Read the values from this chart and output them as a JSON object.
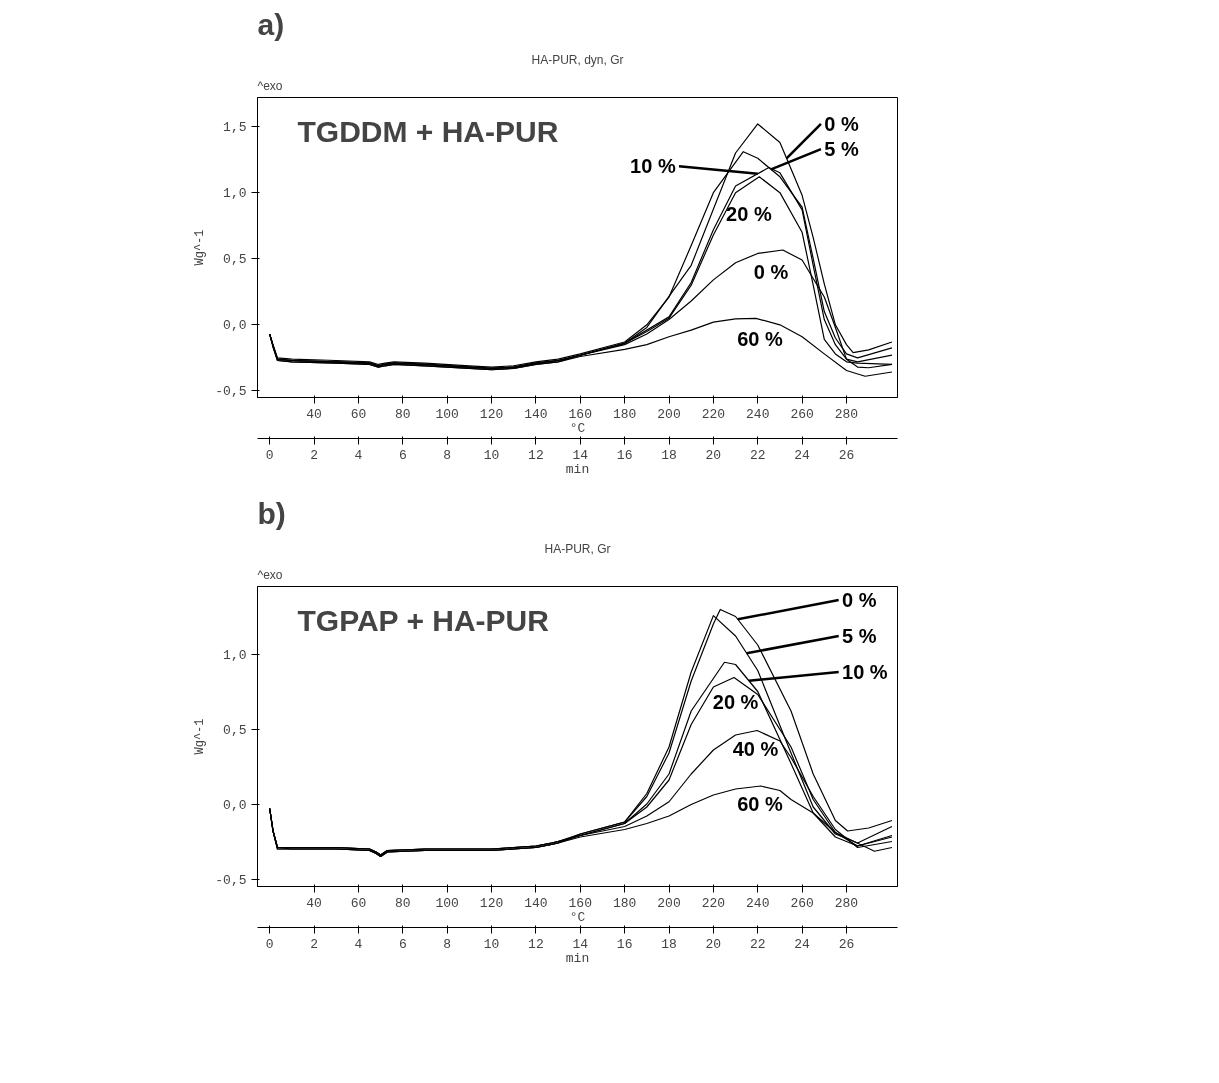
{
  "chart_data": [
    {
      "type": "line",
      "title": "a)",
      "subtitle": "TGDDM + HA-PUR",
      "annotations": [
        "^exo",
        "HA-PUR, dyn, Gr"
      ],
      "xlabel": "min",
      "x2label": "°C",
      "ylabel": "Wg^-1",
      "xlim": [
        -0.55,
        28.3
      ],
      "xticks": [
        0,
        2,
        4,
        6,
        8,
        10,
        12,
        14,
        16,
        18,
        20,
        22,
        24,
        26
      ],
      "x2lim": [
        14.5,
        303
      ],
      "x2ticks": [
        40,
        60,
        80,
        100,
        120,
        140,
        160,
        180,
        200,
        220,
        240,
        260,
        280
      ],
      "ylim": [
        -0.55,
        1.72
      ],
      "yticks": [
        {
          "value": -0.5,
          "label": "-0,5"
        },
        {
          "value": 0,
          "label": "0,0"
        },
        {
          "value": 0.5,
          "label": "0,5"
        },
        {
          "value": 1,
          "label": "1,0"
        },
        {
          "value": 1.5,
          "label": "1,5"
        }
      ],
      "series": [
        {
          "name": "0 %",
          "color": "#000000",
          "x": [
            0,
            0.15,
            0.35,
            1,
            3,
            4.5,
            4.9,
            5.2,
            5.6,
            7,
            9,
            10,
            11,
            12,
            13,
            14,
            16,
            17,
            19,
            21,
            22,
            23,
            24,
            24.5,
            25,
            25.5,
            26,
            26.3,
            27,
            28.05
          ],
          "values": [
            -0.07,
            -0.16,
            -0.26,
            -0.27,
            -0.28,
            -0.29,
            -0.31,
            -0.3,
            -0.29,
            -0.3,
            -0.32,
            -0.33,
            -0.32,
            -0.29,
            -0.27,
            -0.23,
            -0.14,
            -0.02,
            0.45,
            1.3,
            1.52,
            1.38,
            0.98,
            0.66,
            0.31,
            0.0,
            -0.15,
            -0.21,
            -0.19,
            -0.13
          ]
        },
        {
          "name": "5 %",
          "color": "#000000",
          "x": [
            0,
            0.15,
            0.35,
            1,
            3,
            4.5,
            4.9,
            5.2,
            5.6,
            7,
            9,
            10,
            11,
            12,
            13,
            14,
            16,
            17,
            18,
            19,
            20,
            21.35,
            22,
            23,
            24,
            24.5,
            25,
            25.5,
            26,
            26.5,
            28.05
          ],
          "values": [
            -0.07,
            -0.15,
            -0.25,
            -0.26,
            -0.27,
            -0.28,
            -0.3,
            -0.29,
            -0.28,
            -0.29,
            -0.31,
            -0.32,
            -0.31,
            -0.28,
            -0.26,
            -0.22,
            -0.13,
            0.0,
            0.21,
            0.6,
            1.0,
            1.31,
            1.26,
            1.12,
            0.89,
            0.5,
            0.1,
            -0.1,
            -0.22,
            -0.25,
            -0.175
          ]
        },
        {
          "name": "10 %",
          "color": "#000000",
          "x": [
            0,
            0.15,
            0.35,
            1,
            3,
            4.5,
            4.9,
            5.2,
            5.6,
            7,
            9,
            10,
            11,
            12,
            13,
            14,
            16,
            17,
            18,
            19,
            20,
            21,
            22.5,
            23,
            24,
            24.5,
            25,
            25.5,
            26,
            26.5,
            28.05
          ],
          "values": [
            -0.07,
            -0.16,
            -0.26,
            -0.27,
            -0.28,
            -0.29,
            -0.31,
            -0.3,
            -0.29,
            -0.3,
            -0.32,
            -0.33,
            -0.32,
            -0.29,
            -0.27,
            -0.23,
            -0.14,
            -0.04,
            0.06,
            0.32,
            0.72,
            1.05,
            1.19,
            1.15,
            0.87,
            0.45,
            0.04,
            -0.15,
            -0.26,
            -0.28,
            -0.23
          ]
        },
        {
          "name": "20 %",
          "color": "#000000",
          "x": [
            0,
            0.15,
            0.35,
            1,
            3,
            4.5,
            4.9,
            5.2,
            5.6,
            7,
            9,
            10,
            11,
            12,
            13,
            14,
            16,
            17,
            18,
            19,
            20,
            21,
            22.07,
            23,
            24,
            24.5,
            25,
            25.5,
            26,
            26.5,
            28.05
          ],
          "values": [
            -0.07,
            -0.17,
            -0.27,
            -0.28,
            -0.29,
            -0.3,
            -0.32,
            -0.31,
            -0.3,
            -0.31,
            -0.33,
            -0.34,
            -0.33,
            -0.3,
            -0.28,
            -0.23,
            -0.14,
            -0.05,
            0.05,
            0.3,
            0.68,
            1.0,
            1.12,
            1.0,
            0.7,
            0.3,
            -0.11,
            -0.22,
            -0.28,
            -0.29,
            -0.3
          ]
        },
        {
          "name": "0 %",
          "color": "#000000",
          "x": [
            0,
            0.15,
            0.35,
            1,
            3,
            4.5,
            4.9,
            5.2,
            5.6,
            7,
            9,
            10,
            11,
            12,
            13,
            14,
            16,
            17,
            18,
            19,
            20,
            21,
            22,
            23.13,
            24,
            25,
            25.5,
            26,
            26.5,
            27,
            28.05
          ],
          "values": [
            -0.07,
            -0.16,
            -0.26,
            -0.27,
            -0.28,
            -0.29,
            -0.31,
            -0.3,
            -0.29,
            -0.3,
            -0.32,
            -0.33,
            -0.32,
            -0.29,
            -0.27,
            -0.23,
            -0.15,
            -0.07,
            0.04,
            0.18,
            0.34,
            0.47,
            0.54,
            0.566,
            0.49,
            0.21,
            -0.02,
            -0.26,
            -0.32,
            -0.325,
            -0.3
          ]
        },
        {
          "name": "60 %",
          "color": "#000000",
          "x": [
            0,
            0.15,
            0.35,
            1,
            3,
            4.5,
            4.9,
            5.2,
            5.6,
            7,
            9,
            10,
            11,
            12,
            13,
            14,
            16,
            17,
            18,
            19,
            20,
            21,
            21.92,
            23,
            24,
            25,
            26,
            26.84,
            28.05
          ],
          "values": [
            -0.07,
            -0.16,
            -0.27,
            -0.28,
            -0.29,
            -0.3,
            -0.32,
            -0.31,
            -0.3,
            -0.31,
            -0.33,
            -0.34,
            -0.33,
            -0.3,
            -0.28,
            -0.24,
            -0.186,
            -0.15,
            -0.09,
            -0.04,
            0.02,
            0.045,
            0.049,
            0.0,
            -0.09,
            -0.22,
            -0.346,
            -0.389,
            -0.357
          ]
        }
      ]
    },
    {
      "type": "line",
      "title": "b)",
      "legend": "top right",
      "subtitle": "TGPAP + HA-PUR",
      "annotations": [
        "^exo",
        "HA-PUR, Gr"
      ],
      "xlabel": "min",
      "x2label": "°C",
      "ylabel": "Wg^-1",
      "xlim": [
        -0.55,
        28.3
      ],
      "xticks": [
        0,
        2,
        4,
        6,
        8,
        10,
        12,
        14,
        16,
        18,
        20,
        22,
        24,
        26
      ],
      "x2lim": [
        14.5,
        303
      ],
      "x2ticks": [
        40,
        60,
        80,
        100,
        120,
        140,
        160,
        180,
        200,
        220,
        240,
        260,
        280
      ],
      "ylim": [
        -0.55,
        1.45
      ],
      "yticks": [
        {
          "value": -0.5,
          "label": "-0,5"
        },
        {
          "value": 0,
          "label": "0,0"
        },
        {
          "value": 0.5,
          "label": "0,5"
        },
        {
          "value": 1,
          "label": "1,0"
        }
      ],
      "series": [
        {
          "name": "0 %",
          "color": "#000000",
          "x": [
            0,
            0.15,
            0.35,
            1,
            3,
            4.5,
            4.8,
            5.0,
            5.3,
            7,
            8.5,
            10,
            11,
            12,
            12.7,
            13,
            14,
            16,
            17,
            18,
            19,
            20,
            20.31,
            21,
            22,
            23.5,
            24.5,
            25.5,
            26.05,
            27,
            28.05
          ],
          "values": [
            -0.03,
            -0.18,
            -0.29,
            -0.29,
            -0.29,
            -0.3,
            -0.32,
            -0.34,
            -0.31,
            -0.3,
            -0.3,
            -0.3,
            -0.29,
            -0.28,
            -0.26,
            -0.25,
            -0.2,
            -0.12,
            0.05,
            0.34,
            0.82,
            1.2,
            1.297,
            1.25,
            1.06,
            0.62,
            0.2,
            -0.11,
            -0.18,
            -0.16,
            -0.11
          ]
        },
        {
          "name": "5 %",
          "color": "#000000",
          "x": [
            0,
            0.15,
            0.35,
            1,
            3,
            4.5,
            4.8,
            5.0,
            5.3,
            7,
            8.5,
            10,
            11,
            12,
            12.7,
            13,
            14,
            16,
            17,
            18,
            19,
            20,
            21,
            22,
            23.5,
            24.5,
            25.5,
            26.5,
            28.05
          ],
          "values": [
            -0.03,
            -0.18,
            -0.29,
            -0.3,
            -0.3,
            -0.31,
            -0.33,
            -0.35,
            -0.32,
            -0.31,
            -0.31,
            -0.31,
            -0.3,
            -0.29,
            -0.27,
            -0.26,
            -0.2,
            -0.12,
            0.07,
            0.38,
            0.88,
            1.256,
            1.12,
            0.89,
            0.34,
            -0.02,
            -0.2,
            -0.26,
            -0.15
          ]
        },
        {
          "name": "10 %",
          "color": "#000000",
          "x": [
            0,
            0.15,
            0.35,
            1,
            3,
            4.5,
            4.8,
            5.0,
            5.3,
            7,
            8.5,
            10,
            11,
            12,
            12.7,
            13,
            14,
            16,
            17,
            18,
            19,
            20.5,
            21,
            22,
            23.5,
            24.5,
            25.5,
            26.5,
            28.05
          ],
          "values": [
            -0.03,
            -0.18,
            -0.29,
            -0.29,
            -0.29,
            -0.3,
            -0.32,
            -0.34,
            -0.31,
            -0.3,
            -0.3,
            -0.3,
            -0.29,
            -0.28,
            -0.26,
            -0.25,
            -0.21,
            -0.13,
            0.0,
            0.2,
            0.62,
            0.945,
            0.93,
            0.75,
            0.27,
            -0.06,
            -0.22,
            -0.28,
            -0.21
          ]
        },
        {
          "name": "20 %",
          "color": "#000000",
          "x": [
            0,
            0.15,
            0.35,
            1,
            3,
            4.5,
            4.8,
            5.0,
            5.3,
            7,
            8.5,
            10,
            11,
            12,
            12.7,
            13,
            14,
            16,
            17,
            18,
            19,
            20,
            20.93,
            22,
            23.5,
            24.5,
            25.5,
            26.5,
            28.05
          ],
          "values": [
            -0.03,
            -0.18,
            -0.3,
            -0.3,
            -0.3,
            -0.31,
            -0.33,
            -0.35,
            -0.32,
            -0.31,
            -0.31,
            -0.31,
            -0.3,
            -0.29,
            -0.27,
            -0.26,
            -0.21,
            -0.13,
            -0.02,
            0.16,
            0.53,
            0.78,
            0.843,
            0.73,
            0.38,
            0.03,
            -0.19,
            -0.28,
            -0.22
          ]
        },
        {
          "name": "40 %",
          "color": "#000000",
          "x": [
            0,
            0.15,
            0.35,
            1,
            3,
            4.5,
            4.8,
            5.0,
            5.3,
            7,
            8.5,
            10,
            11,
            12,
            12.7,
            13,
            14,
            16,
            17,
            18,
            19,
            20,
            21,
            21.97,
            23,
            23.5,
            24.5,
            25.5,
            26.5,
            28.05
          ],
          "values": [
            -0.03,
            -0.18,
            -0.29,
            -0.29,
            -0.29,
            -0.3,
            -0.32,
            -0.34,
            -0.31,
            -0.3,
            -0.3,
            -0.3,
            -0.29,
            -0.28,
            -0.26,
            -0.25,
            -0.21,
            -0.15,
            -0.08,
            0.015,
            0.2,
            0.36,
            0.46,
            0.49,
            0.42,
            0.31,
            0.05,
            -0.17,
            -0.29,
            -0.25
          ]
        },
        {
          "name": "60 %",
          "color": "#000000",
          "x": [
            0,
            0.15,
            0.35,
            1,
            3,
            4.5,
            4.8,
            5.0,
            5.3,
            7,
            8.5,
            10,
            11,
            12,
            12.7,
            13,
            14,
            16,
            17,
            18,
            19,
            20,
            21,
            22.14,
            23,
            23.5,
            24.5,
            25.5,
            27.26,
            28.05
          ],
          "values": [
            -0.03,
            -0.18,
            -0.3,
            -0.3,
            -0.3,
            -0.31,
            -0.33,
            -0.35,
            -0.32,
            -0.31,
            -0.31,
            -0.31,
            -0.3,
            -0.29,
            -0.27,
            -0.26,
            -0.22,
            -0.17,
            -0.13,
            -0.08,
            -0.003,
            0.06,
            0.1,
            0.12,
            0.09,
            0.03,
            -0.06,
            -0.19,
            -0.315,
            -0.29
          ]
        }
      ]
    }
  ]
}
